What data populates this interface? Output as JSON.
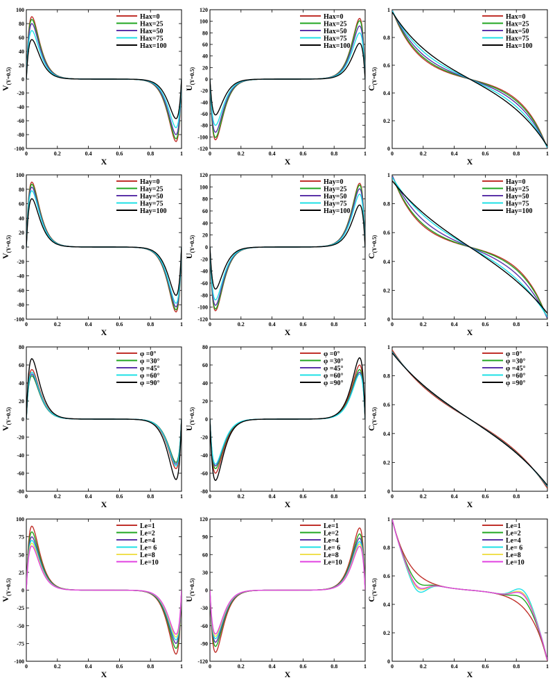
{
  "series_colors": [
    "#c0302a",
    "#1fa51f",
    "#5a32a8",
    "#1ee0e6",
    "#000000"
  ],
  "le_colors": [
    "#c0302a",
    "#1fa51f",
    "#5a32a8",
    "#1ee0e6",
    "#f0e050",
    "#e040e0"
  ],
  "chart_data": [
    {
      "type": "line",
      "xlabel": "X",
      "ylabel": "V",
      "ysub": "(Y=0.5)",
      "xlim": [
        0,
        1
      ],
      "ylim": [
        -100,
        100
      ],
      "yticks": [
        -100,
        -80,
        -60,
        -40,
        -20,
        0,
        20,
        40,
        60,
        80,
        100
      ],
      "ytick_labels": [
        "-100",
        "-80",
        "-60",
        "-40",
        "-20",
        "0",
        "20",
        "40",
        "60",
        "80",
        "100"
      ],
      "xticks": [
        0,
        0.2,
        0.4,
        0.6,
        0.8,
        1
      ],
      "xtick_labels": [
        "0",
        "0.2",
        "0.4",
        "0.6",
        "0.8",
        "1"
      ],
      "legend": "top-right",
      "kind": "V",
      "series": [
        {
          "name": "Hax=0",
          "peak": 90
        },
        {
          "name": "Hax=25",
          "peak": 86
        },
        {
          "name": "Hax=50",
          "peak": 80
        },
        {
          "name": "Hax=75",
          "peak": 70
        },
        {
          "name": "Hax=100",
          "peak": 57
        }
      ]
    },
    {
      "type": "line",
      "xlabel": "X",
      "ylabel": "U",
      "ysub": "(Y=0.5)",
      "xlim": [
        0,
        1
      ],
      "ylim": [
        -120,
        120
      ],
      "yticks": [
        -120,
        -100,
        -80,
        -60,
        -40,
        -20,
        0,
        20,
        40,
        60,
        80,
        100,
        120
      ],
      "ytick_labels": [
        "-120",
        "-100",
        "-80",
        "-60",
        "-40",
        "-20",
        "0",
        "20",
        "40",
        "60",
        "80",
        "100",
        "120"
      ],
      "xticks": [
        0,
        0.2,
        0.4,
        0.6,
        0.8,
        1
      ],
      "xtick_labels": [
        "0",
        "0.2",
        "0.4",
        "0.6",
        "0.8",
        "1"
      ],
      "legend": "top-right",
      "kind": "U",
      "series": [
        {
          "name": "Hax=0",
          "peak": 105
        },
        {
          "name": "Hax=25",
          "peak": 101
        },
        {
          "name": "Hax=50",
          "peak": 92
        },
        {
          "name": "Hax=75",
          "peak": 80
        },
        {
          "name": "Hax=100",
          "peak": 62
        }
      ]
    },
    {
      "type": "line",
      "xlabel": "X",
      "ylabel": "C",
      "ysub": "(Y=0.5)",
      "xlim": [
        0,
        1
      ],
      "ylim": [
        0,
        1
      ],
      "yticks": [
        0,
        0.2,
        0.4,
        0.6,
        0.8,
        1
      ],
      "ytick_labels": [
        "0",
        "0.2",
        "0.4",
        "0.6",
        "0.8",
        "1"
      ],
      "xticks": [
        0,
        0.2,
        0.4,
        0.6,
        0.8,
        1
      ],
      "xtick_labels": [
        "0",
        "0.2",
        "0.4",
        "0.6",
        "0.8",
        "1"
      ],
      "legend": "top-right",
      "kind": "C",
      "series": [
        {
          "name": "Hax=0",
          "amp": 0.5,
          "k": 6
        },
        {
          "name": "Hax=25",
          "amp": 0.5,
          "k": 5.6
        },
        {
          "name": "Hax=50",
          "amp": 0.5,
          "k": 5
        },
        {
          "name": "Hax=75",
          "amp": 0.5,
          "k": 4.2
        },
        {
          "name": "Hax=100",
          "amp": 0.5,
          "k": 3.4
        }
      ]
    },
    {
      "type": "line",
      "xlabel": "X",
      "ylabel": "V",
      "ysub": "(Y=0.5)",
      "xlim": [
        0,
        1
      ],
      "ylim": [
        -100,
        100
      ],
      "yticks": [
        -100,
        -80,
        -60,
        -40,
        -20,
        0,
        20,
        40,
        60,
        80,
        100
      ],
      "ytick_labels": [
        "-100",
        "-80",
        "-60",
        "-40",
        "-20",
        "0",
        "20",
        "40",
        "60",
        "80",
        "100"
      ],
      "xticks": [
        0,
        0.2,
        0.4,
        0.6,
        0.8,
        1
      ],
      "xtick_labels": [
        "0",
        "0.2",
        "0.4",
        "0.6",
        "0.8",
        "1"
      ],
      "legend": "top-right",
      "kind": "V",
      "series": [
        {
          "name": "Hay=0",
          "peak": 90
        },
        {
          "name": "Hay=25",
          "peak": 87
        },
        {
          "name": "Hay=50",
          "peak": 83
        },
        {
          "name": "Hay=75",
          "peak": 78
        },
        {
          "name": "Hay=100",
          "peak": 67
        }
      ]
    },
    {
      "type": "line",
      "xlabel": "X",
      "ylabel": "U",
      "ysub": "(Y=0.5)",
      "xlim": [
        0,
        1
      ],
      "ylim": [
        -120,
        120
      ],
      "yticks": [
        -120,
        -100,
        -80,
        -60,
        -40,
        -20,
        0,
        20,
        40,
        60,
        80,
        100,
        120
      ],
      "ytick_labels": [
        "-120",
        "-100",
        "-80",
        "-60",
        "-40",
        "-20",
        "0",
        "20",
        "40",
        "60",
        "80",
        "100",
        "120"
      ],
      "xticks": [
        0,
        0.2,
        0.4,
        0.6,
        0.8,
        1
      ],
      "xtick_labels": [
        "0",
        "0.2",
        "0.4",
        "0.6",
        "0.8",
        "1"
      ],
      "legend": "top-right",
      "kind": "U",
      "series": [
        {
          "name": "Hay=0",
          "peak": 106
        },
        {
          "name": "Hay=25",
          "peak": 103
        },
        {
          "name": "Hay=50",
          "peak": 97
        },
        {
          "name": "Hay=75",
          "peak": 88
        },
        {
          "name": "Hay=100",
          "peak": 70
        }
      ]
    },
    {
      "type": "line",
      "xlabel": "X",
      "ylabel": "C",
      "ysub": "(Y=0.5)",
      "xlim": [
        0,
        1
      ],
      "ylim": [
        0,
        1
      ],
      "yticks": [
        0,
        0.2,
        0.4,
        0.6,
        0.8,
        1
      ],
      "ytick_labels": [
        "0",
        "0.2",
        "0.4",
        "0.6",
        "0.8",
        "1"
      ],
      "xticks": [
        0,
        0.2,
        0.4,
        0.6,
        0.8,
        1
      ],
      "xtick_labels": [
        "0",
        "0.2",
        "0.4",
        "0.6",
        "0.8",
        "1"
      ],
      "legend": "top-right",
      "kind": "C",
      "series": [
        {
          "name": "Hay=0",
          "amp": 0.5,
          "k": 6
        },
        {
          "name": "Hay=25",
          "amp": 0.5,
          "k": 5.6
        },
        {
          "name": "Hay=50",
          "amp": 0.5,
          "k": 4.6
        },
        {
          "name": "Hay=75",
          "amp": 0.5,
          "k": 3.4
        },
        {
          "name": "Hay=100",
          "amp": 0.5,
          "k": 2.5
        }
      ]
    },
    {
      "type": "line",
      "xlabel": "X",
      "ylabel": "V",
      "ysub": "(Y=0.5)",
      "xlim": [
        0,
        1
      ],
      "ylim": [
        -80,
        80
      ],
      "yticks": [
        -80,
        -60,
        -40,
        -20,
        0,
        20,
        40,
        60,
        80
      ],
      "ytick_labels": [
        "-80",
        "-60",
        "-40",
        "-20",
        "0",
        "20",
        "40",
        "60",
        "80"
      ],
      "xticks": [
        0,
        0.2,
        0.4,
        0.6,
        0.8,
        1
      ],
      "xtick_labels": [
        "0",
        "0.2",
        "0.4",
        "0.6",
        "0.8",
        "1"
      ],
      "legend": "top-right",
      "kind": "V",
      "series": [
        {
          "name": "φ =0°",
          "peak": 55
        },
        {
          "name": "φ =30°",
          "peak": 48
        },
        {
          "name": "φ =45°",
          "peak": 50
        },
        {
          "name": "φ =60°",
          "peak": 52
        },
        {
          "name": "φ =90°",
          "peak": 67
        }
      ]
    },
    {
      "type": "line",
      "xlabel": "X",
      "ylabel": "U",
      "ysub": "(Y=0.5)",
      "xlim": [
        0,
        1
      ],
      "ylim": [
        -80,
        80
      ],
      "yticks": [
        -80,
        -60,
        -40,
        -20,
        0,
        20,
        40,
        60,
        80
      ],
      "ytick_labels": [
        "-80",
        "-60",
        "-40",
        "-20",
        "0",
        "20",
        "40",
        "60",
        "80"
      ],
      "xticks": [
        0,
        0.2,
        0.4,
        0.6,
        0.8,
        1
      ],
      "xtick_labels": [
        "0",
        "0.2",
        "0.4",
        "0.6",
        "0.8",
        "1"
      ],
      "legend": "top-right",
      "kind": "U",
      "series": [
        {
          "name": "φ =0°",
          "peak": 60
        },
        {
          "name": "φ =30°",
          "peak": 55
        },
        {
          "name": "φ =45°",
          "peak": 52
        },
        {
          "name": "φ =60°",
          "peak": 50
        },
        {
          "name": "φ =90°",
          "peak": 68
        }
      ]
    },
    {
      "type": "line",
      "xlabel": "X",
      "ylabel": "C",
      "ysub": "(Y=0.5)",
      "xlim": [
        0,
        1
      ],
      "ylim": [
        0,
        1
      ],
      "yticks": [
        0,
        0.2,
        0.4,
        0.6,
        0.8,
        1
      ],
      "ytick_labels": [
        "0",
        "0.2",
        "0.4",
        "0.6",
        "0.8",
        "1"
      ],
      "xticks": [
        0,
        0.2,
        0.4,
        0.6,
        0.8,
        1
      ],
      "xtick_labels": [
        "0",
        "0.2",
        "0.4",
        "0.6",
        "0.8",
        "1"
      ],
      "legend": "top-right",
      "kind": "C",
      "series": [
        {
          "name": "φ =0°",
          "amp": 0.5,
          "k": 3.2
        },
        {
          "name": "φ =30°",
          "amp": 0.5,
          "k": 2.8
        },
        {
          "name": "φ =45°",
          "amp": 0.5,
          "k": 2.7
        },
        {
          "name": "φ =60°",
          "amp": 0.5,
          "k": 2.6
        },
        {
          "name": "φ =90°",
          "amp": 0.5,
          "k": 2.5
        }
      ]
    },
    {
      "type": "line",
      "xlabel": "X",
      "ylabel": "V",
      "ysub": "(Y=0.5)",
      "xlim": [
        0,
        1
      ],
      "ylim": [
        -100,
        100
      ],
      "yticks": [
        -100,
        -75,
        -50,
        -25,
        0,
        25,
        50,
        75,
        100
      ],
      "ytick_labels": [
        "-100",
        "-75",
        "-50",
        "-25",
        "0",
        "25",
        "50",
        "75",
        "100"
      ],
      "xticks": [
        0,
        0.2,
        0.4,
        0.6,
        0.8,
        1
      ],
      "xtick_labels": [
        "0",
        "0.2",
        "0.4",
        "0.6",
        "0.8",
        "1"
      ],
      "legend": "top-right",
      "kind": "V",
      "series": [
        {
          "name": "Le=1",
          "peak": 90
        },
        {
          "name": "Le=2",
          "peak": 82
        },
        {
          "name": "Le=4",
          "peak": 75
        },
        {
          "name": "Le= 6",
          "peak": 70
        },
        {
          "name": "Le=8",
          "peak": 66
        },
        {
          "name": "Le=10",
          "peak": 62
        }
      ]
    },
    {
      "type": "line",
      "xlabel": "X",
      "ylabel": "U",
      "ysub": "(Y=0.5)",
      "xlim": [
        0,
        1
      ],
      "ylim": [
        -120,
        120
      ],
      "yticks": [
        -120,
        -90,
        -60,
        -30,
        0,
        30,
        60,
        90,
        120
      ],
      "ytick_labels": [
        "-120",
        "-90",
        "-60",
        "-30",
        "0",
        "30",
        "60",
        "90",
        "120"
      ],
      "xticks": [
        0,
        0.2,
        0.4,
        0.6,
        0.8,
        1
      ],
      "xtick_labels": [
        "0",
        "0.2",
        "0.4",
        "0.6",
        "0.8",
        "1"
      ],
      "legend": "top-right",
      "kind": "U",
      "series": [
        {
          "name": "Le=1",
          "peak": 105
        },
        {
          "name": "Le=2",
          "peak": 95
        },
        {
          "name": "Le=4",
          "peak": 88
        },
        {
          "name": "Le= 6",
          "peak": 82
        },
        {
          "name": "Le=8",
          "peak": 78
        },
        {
          "name": "Le=10",
          "peak": 74
        }
      ]
    },
    {
      "type": "line",
      "xlabel": "X",
      "ylabel": "C",
      "ysub": "(Y=0.5)",
      "xlim": [
        0,
        1
      ],
      "ylim": [
        0,
        1
      ],
      "yticks": [
        0,
        0.2,
        0.4,
        0.6,
        0.8,
        1
      ],
      "ytick_labels": [
        "0",
        "0.2",
        "0.4",
        "0.6",
        "0.8",
        "1"
      ],
      "xticks": [
        0,
        0.2,
        0.4,
        0.6,
        0.8,
        1
      ],
      "xtick_labels": [
        "0",
        "0.2",
        "0.4",
        "0.6",
        "0.8",
        "1"
      ],
      "legend": "top-right",
      "kind": "CLe",
      "series": [
        {
          "name": "Le=1",
          "dip": 0.0,
          "bump": 0.0
        },
        {
          "name": "Le=2",
          "dip": 0.06,
          "bump": 0.06
        },
        {
          "name": "Le=4",
          "dip": 0.1,
          "bump": 0.1
        },
        {
          "name": "Le= 6",
          "dip": 0.12,
          "bump": 0.12
        },
        {
          "name": "Le=8",
          "dip": 0.1,
          "bump": 0.1
        },
        {
          "name": "Le=10",
          "dip": 0.09,
          "bump": 0.09
        }
      ]
    }
  ]
}
